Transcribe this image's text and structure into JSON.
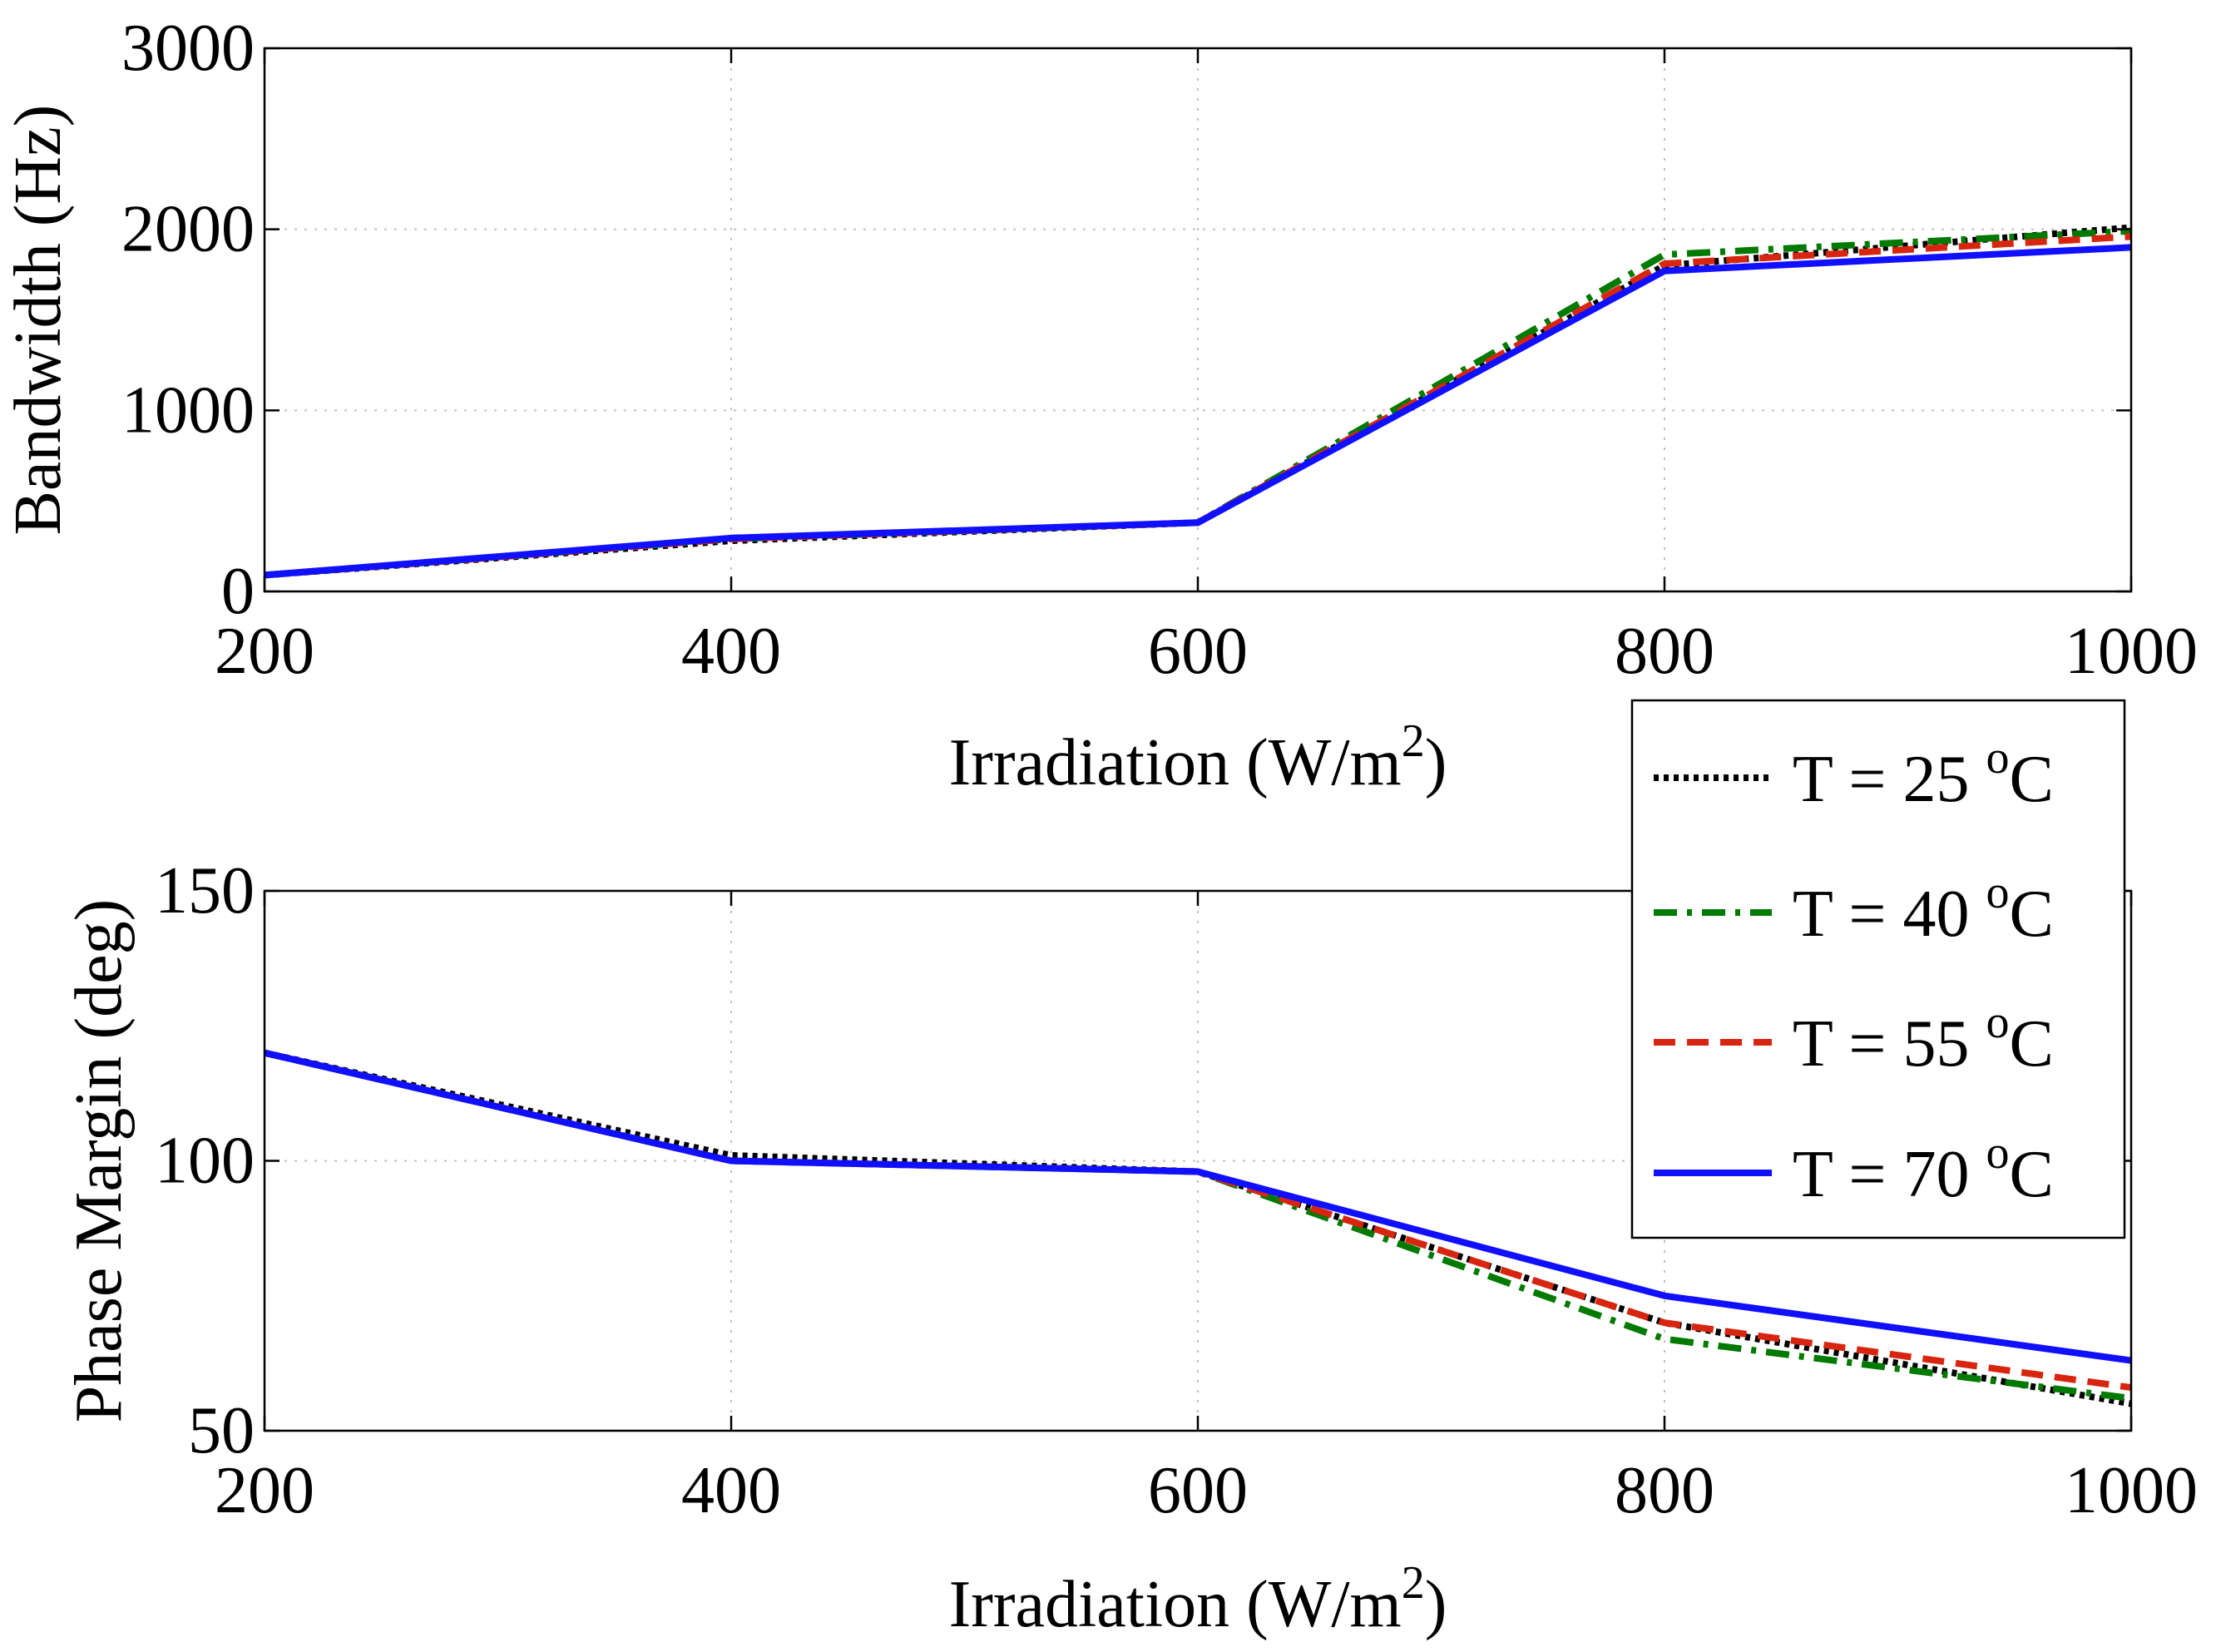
{
  "chart_data": [
    {
      "type": "line",
      "title": "",
      "xlabel": "Irradiation (W/m",
      "xlabel_sup": "2",
      "xlabel_close": ")",
      "ylabel": "Bandwidth (Hz)",
      "xlim": [
        200,
        1000
      ],
      "ylim": [
        0,
        3000
      ],
      "x_ticks": [
        200,
        400,
        600,
        800,
        1000
      ],
      "y_ticks": [
        0,
        1000,
        2000,
        3000
      ],
      "x_tick_labels": [
        "200",
        "400",
        "600",
        "800",
        "1000"
      ],
      "y_tick_labels": [
        "0",
        "1000",
        "2000",
        "3000"
      ],
      "grid": true,
      "x": [
        200,
        400,
        600,
        800,
        1000
      ],
      "series": [
        {
          "name": "T = 25 oC",
          "values": [
            90,
            280,
            380,
            1800,
            2010
          ]
        },
        {
          "name": "T = 40 oC",
          "values": [
            90,
            290,
            380,
            1860,
            1990
          ]
        },
        {
          "name": "T = 55 oC",
          "values": [
            90,
            290,
            380,
            1810,
            1960
          ]
        },
        {
          "name": "T = 70 oC",
          "values": [
            90,
            295,
            380,
            1770,
            1900
          ]
        }
      ]
    },
    {
      "type": "line",
      "title": "",
      "xlabel": "Irradiation (W/m",
      "xlabel_sup": "2",
      "xlabel_close": ")",
      "ylabel": "Phase Margin (deg)",
      "xlim": [
        200,
        1000
      ],
      "ylim": [
        50,
        150
      ],
      "x_ticks": [
        200,
        400,
        600,
        800,
        1000
      ],
      "y_ticks": [
        50,
        100,
        150
      ],
      "x_tick_labels": [
        "200",
        "400",
        "600",
        "800",
        "1000"
      ],
      "y_tick_labels": [
        "50",
        "100",
        "150"
      ],
      "grid": true,
      "x": [
        200,
        400,
        600,
        800,
        1000
      ],
      "series": [
        {
          "name": "T = 25 oC",
          "values": [
            120,
            101,
            98,
            70,
            55
          ]
        },
        {
          "name": "T = 40 oC",
          "values": [
            120,
            100,
            98,
            67,
            56
          ]
        },
        {
          "name": "T = 55 oC",
          "values": [
            120,
            100,
            98,
            70,
            58
          ]
        },
        {
          "name": "T = 70 oC",
          "values": [
            120,
            100,
            98,
            75,
            63
          ]
        }
      ]
    }
  ],
  "legend": {
    "placement": "right, between panels",
    "entries": [
      {
        "prefix": "T = 25 ",
        "sup": "o",
        "suffix": "C",
        "color": "#000000",
        "style": "dotted"
      },
      {
        "prefix": "T = 40 ",
        "sup": "o",
        "suffix": "C",
        "color": "#007a00",
        "style": "dashdot"
      },
      {
        "prefix": "T = 55 ",
        "sup": "o",
        "suffix": "C",
        "color": "#d8250f",
        "style": "dashed"
      },
      {
        "prefix": "T = 70 ",
        "sup": "o",
        "suffix": "C",
        "color": "#1010ff",
        "style": "solid"
      }
    ]
  },
  "colors": {
    "grid": "#c0c0c0",
    "axes": "#000000",
    "background": "#ffffff"
  }
}
